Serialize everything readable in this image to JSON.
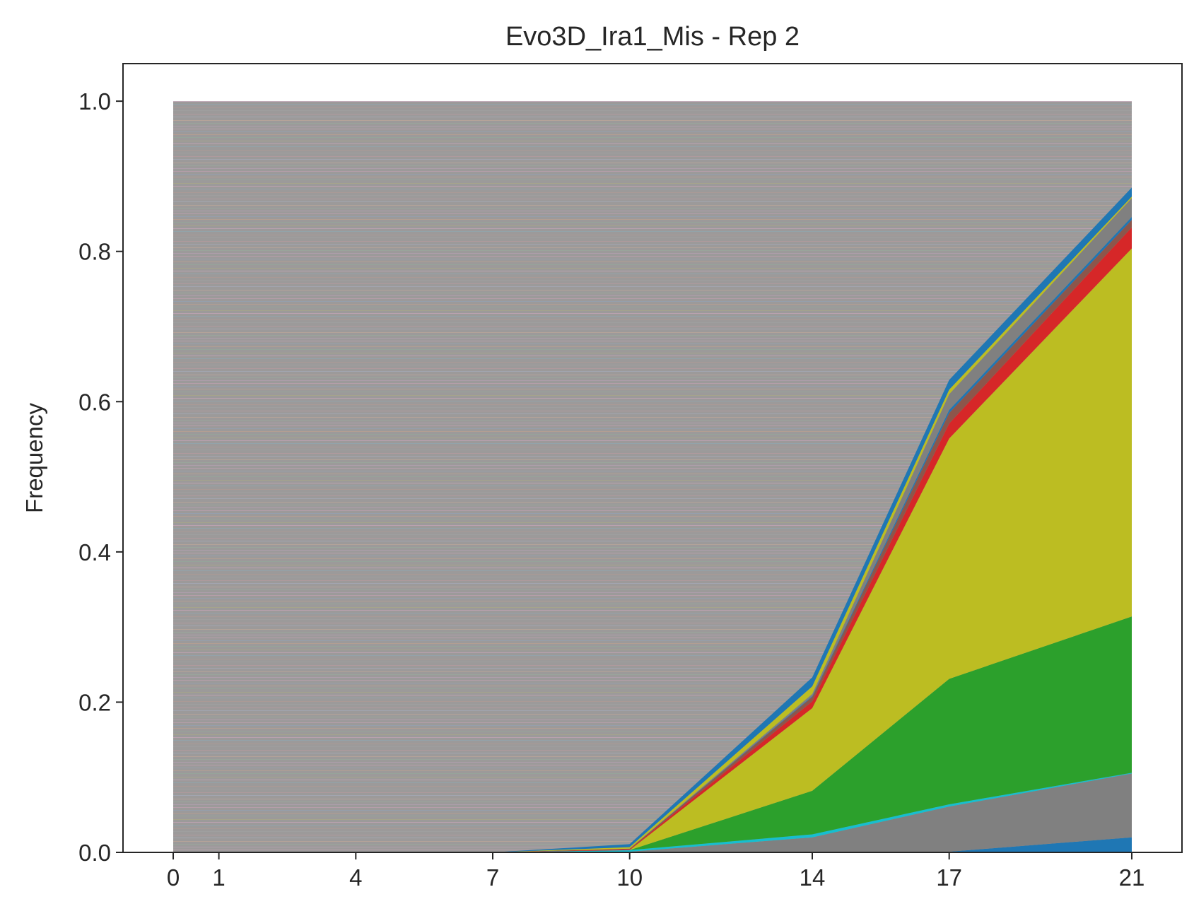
{
  "chart_data": {
    "type": "area",
    "stacked": true,
    "title": "Evo3D_Ira1_Mis - Rep 2",
    "xlabel": "",
    "ylabel": "Frequency",
    "x": [
      0,
      1,
      4,
      7,
      10,
      14,
      17,
      21
    ],
    "xticks": [
      "0",
      "1",
      "4",
      "7",
      "10",
      "14",
      "17",
      "21"
    ],
    "yticks": [
      "0.0",
      "0.2",
      "0.4",
      "0.6",
      "0.8",
      "1.0"
    ],
    "xlim": [
      -1.1,
      22.1
    ],
    "ylim": [
      0,
      1.05
    ],
    "grid": false,
    "legend": "none",
    "background_lineages_color": "#9c9a9a",
    "series": [
      {
        "color": "#1f77b4",
        "values": [
          0.0,
          0.0,
          0.0,
          0.0,
          0.0,
          0.0,
          0.001,
          0.02
        ]
      },
      {
        "color": "#808080",
        "values": [
          0.0,
          0.0,
          0.0,
          0.0,
          0.001,
          0.02,
          0.06,
          0.085
        ]
      },
      {
        "color": "#17becf",
        "values": [
          0.0,
          0.0,
          0.0,
          0.0,
          0.002,
          0.004,
          0.003,
          0.001
        ]
      },
      {
        "color": "#2ca02c",
        "values": [
          0.0,
          0.0,
          0.0,
          0.0,
          0.0,
          0.058,
          0.167,
          0.208
        ]
      },
      {
        "color": "#bcbd22",
        "values": [
          0.0,
          0.0,
          0.0,
          0.0,
          0.0,
          0.11,
          0.32,
          0.49
        ]
      },
      {
        "color": "#d62728",
        "values": [
          0.0,
          0.0,
          0.0,
          0.0,
          0.001,
          0.009,
          0.02,
          0.028
        ]
      },
      {
        "color": "#8c564b",
        "values": [
          0.0,
          0.0,
          0.0,
          0.0,
          0.001,
          0.006,
          0.014,
          0.01
        ]
      },
      {
        "color": "#1f77b4",
        "values": [
          0.0,
          0.0,
          0.0,
          0.0,
          0.0,
          0.001,
          0.004,
          0.004
        ]
      },
      {
        "color": "#808080",
        "values": [
          0.0,
          0.0,
          0.0,
          0.0,
          0.0,
          0.003,
          0.021,
          0.025
        ]
      },
      {
        "color": "#bcbd22",
        "values": [
          0.0,
          0.0,
          0.0,
          0.0,
          0.002,
          0.01,
          0.006,
          0.002
        ]
      },
      {
        "color": "#1f77b4",
        "values": [
          0.0,
          0.0,
          0.0,
          0.0,
          0.004,
          0.012,
          0.013,
          0.012
        ]
      }
    ]
  }
}
